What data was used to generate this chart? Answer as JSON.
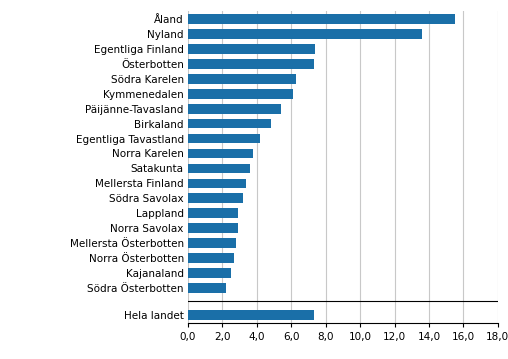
{
  "categories": [
    "Södra Österbotten",
    "Kajanaland",
    "Norra Österbotten",
    "Mellersta Österbotten",
    "Norra Savolax",
    "Lappland",
    "Södra Savolax",
    "Mellersta Finland",
    "Satakunta",
    "Norra Karelen",
    "Egentliga Tavastland",
    "Birkaland",
    "Päijänne-Tavasland",
    "Kymmenedalen",
    "Södra Karelen",
    "Österbotten",
    "Egentliga Finland",
    "Nyland",
    "Åland"
  ],
  "values": [
    2.2,
    2.5,
    2.7,
    2.8,
    2.9,
    2.9,
    3.2,
    3.4,
    3.6,
    3.8,
    4.2,
    4.8,
    5.4,
    6.1,
    6.3,
    7.3,
    7.4,
    13.6,
    15.5
  ],
  "hela_landet_value": 7.3,
  "xlim": [
    0,
    18.0
  ],
  "xticks": [
    0.0,
    2.0,
    4.0,
    6.0,
    8.0,
    10.0,
    12.0,
    14.0,
    16.0,
    18.0
  ],
  "xtick_labels": [
    "0,0",
    "2,0",
    "4,0",
    "6,0",
    "8,0",
    "10,0",
    "12,0",
    "14,0",
    "16,0",
    "18,0"
  ],
  "background_color": "#ffffff",
  "bar_color_hex": "#1a6fa8",
  "grid_color": "#c8c8c8",
  "label_fontsize": 7.5,
  "tick_fontsize": 7.5
}
